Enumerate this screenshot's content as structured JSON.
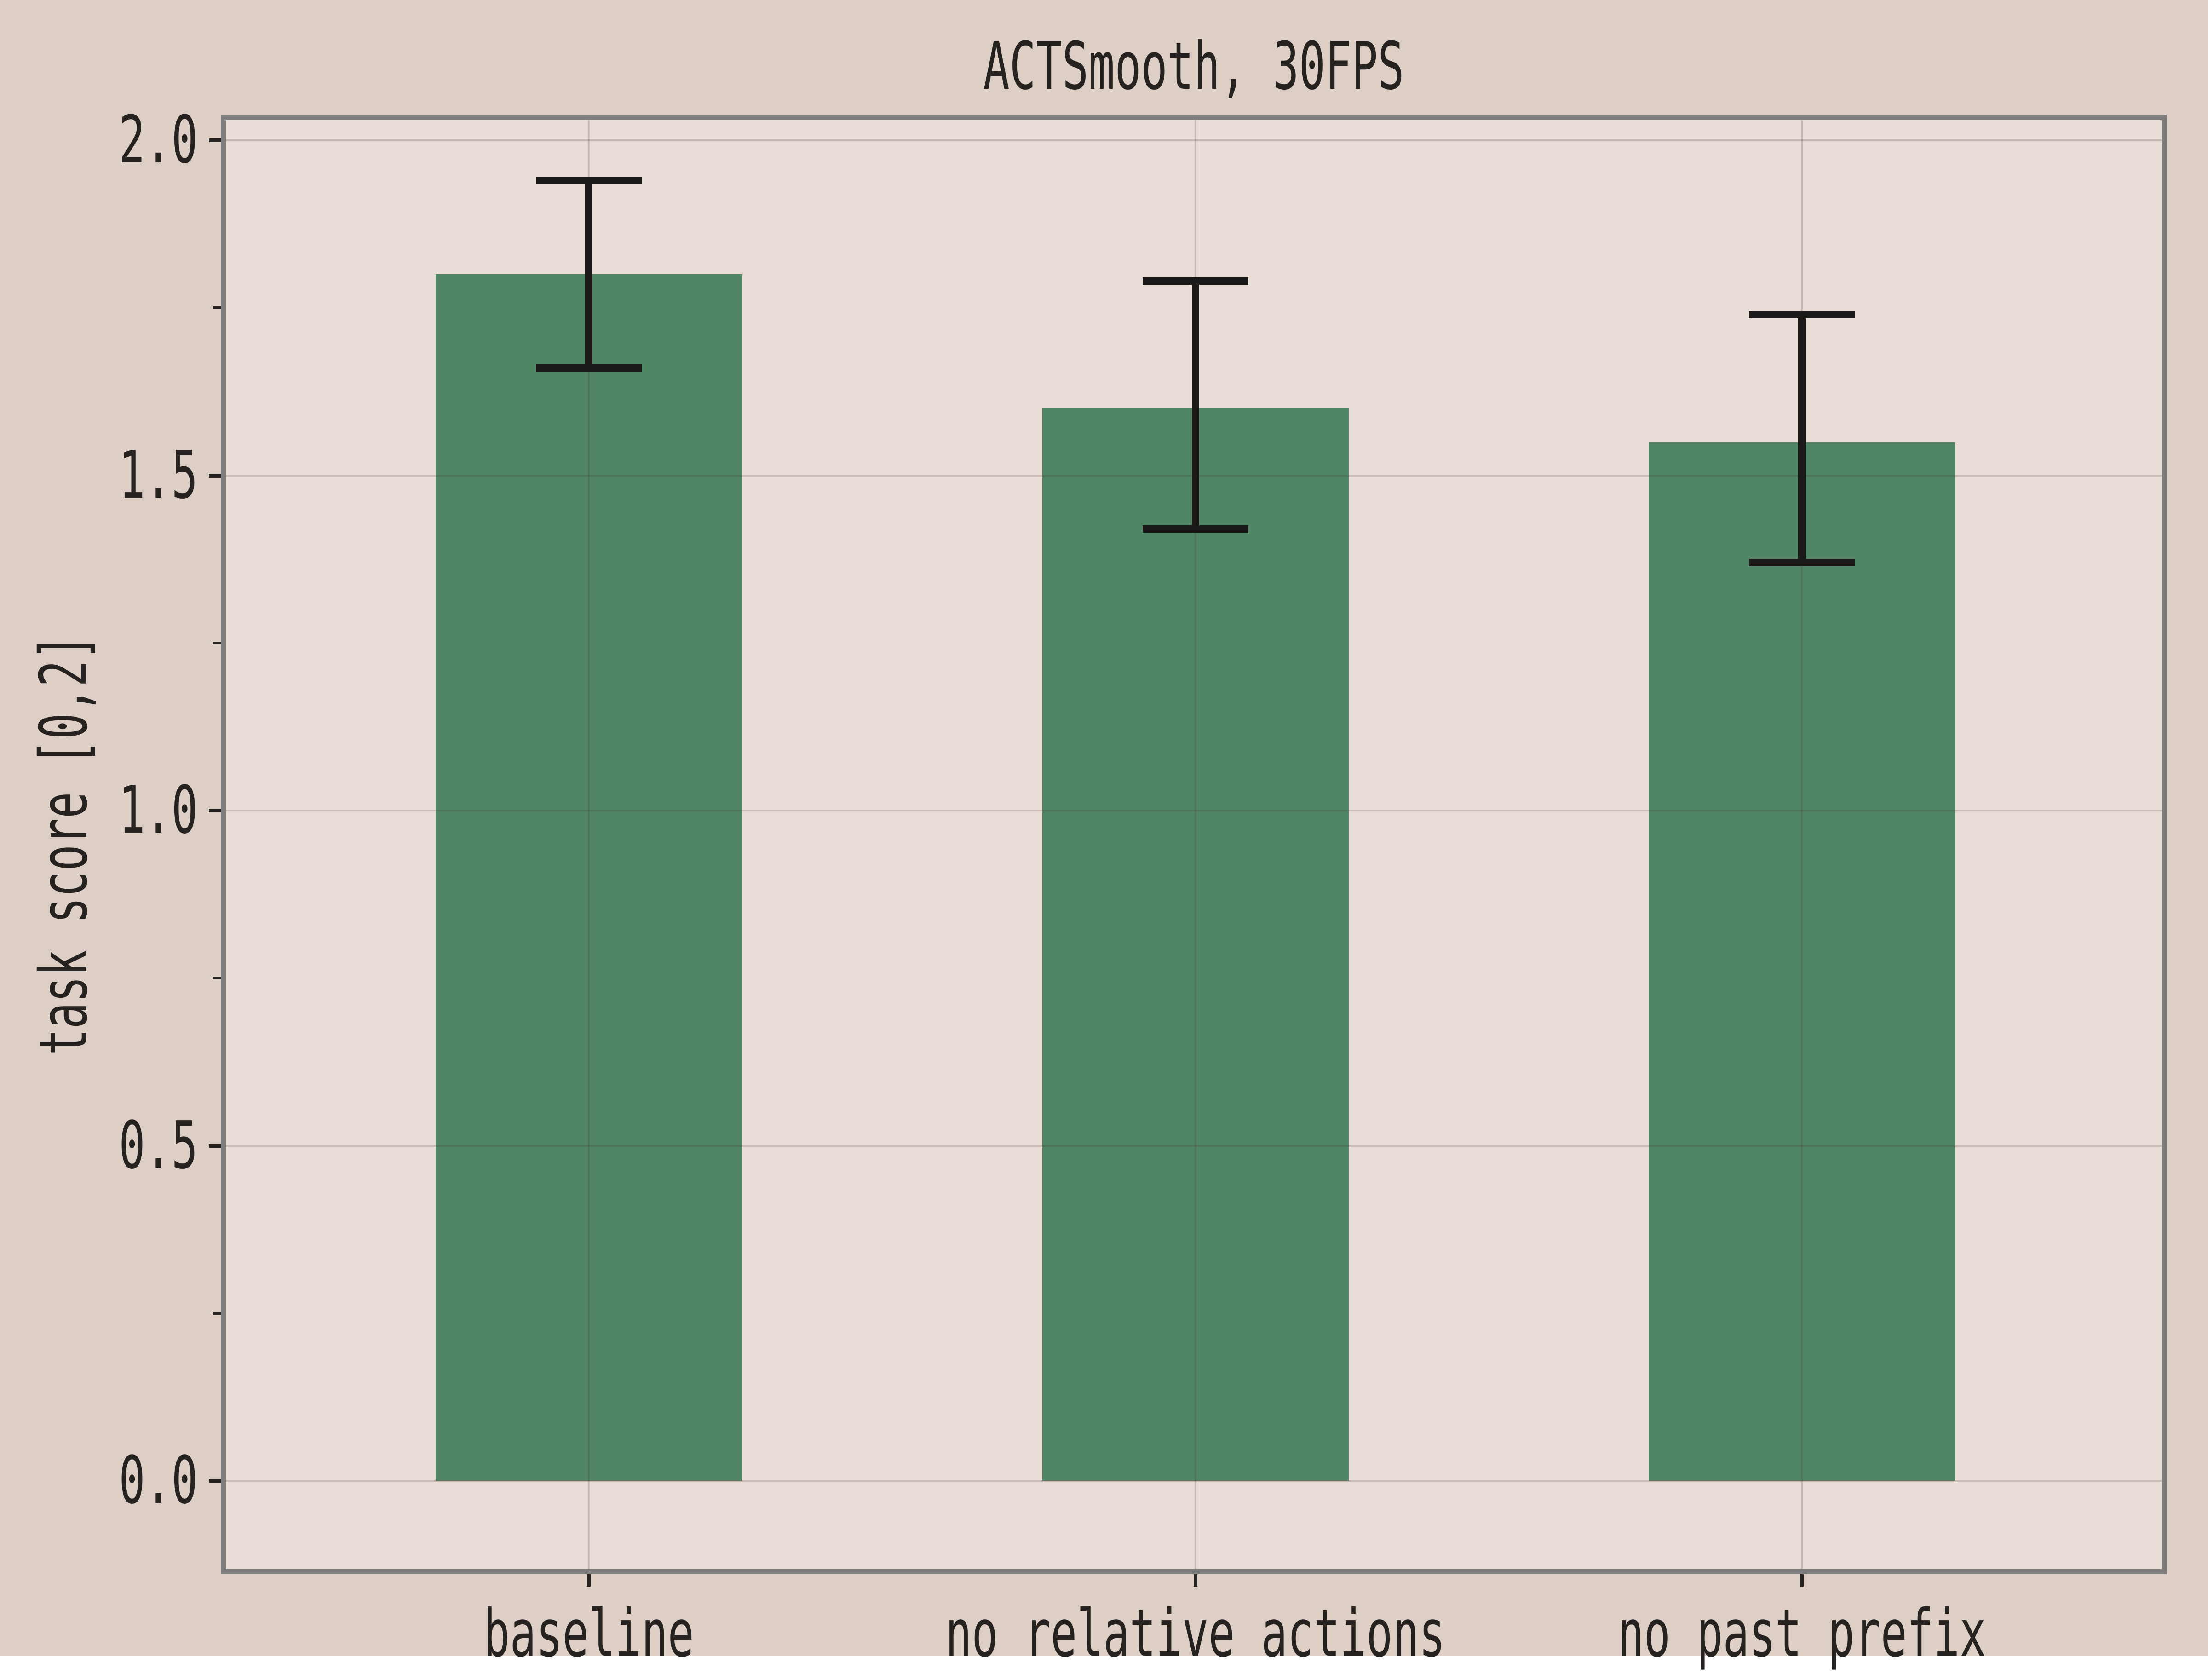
{
  "chart_data": {
    "type": "bar",
    "title": "ACTSmooth, 30FPS",
    "xlabel": "",
    "ylabel": "task score [0,2]",
    "categories": [
      "baseline",
      "no relative actions",
      "no past prefix"
    ],
    "values": [
      1.8,
      1.6,
      1.55
    ],
    "error_low": [
      1.66,
      1.42,
      1.37
    ],
    "error_high": [
      1.94,
      1.79,
      1.74
    ],
    "ylim": [
      -0.13,
      2.03
    ],
    "yticks": [
      0.0,
      0.5,
      1.0,
      1.5,
      2.0
    ],
    "ytick_labels": [
      "0.0",
      "0.5",
      "1.0",
      "1.5",
      "2.0"
    ],
    "yticks_minor": [
      0.25,
      0.75,
      1.25,
      1.75
    ],
    "grid": true,
    "legend": false
  },
  "style": {
    "figure_background": "#ddcec6",
    "plot_background": "#e8ded7",
    "bar_color": "#508566",
    "spine_color": "#7d7d7d",
    "grid_color": "rgba(70,50,40,0.20)",
    "tick_color": "#262220",
    "text_color": "#262220",
    "errorbar_color": "#1c1a18"
  }
}
